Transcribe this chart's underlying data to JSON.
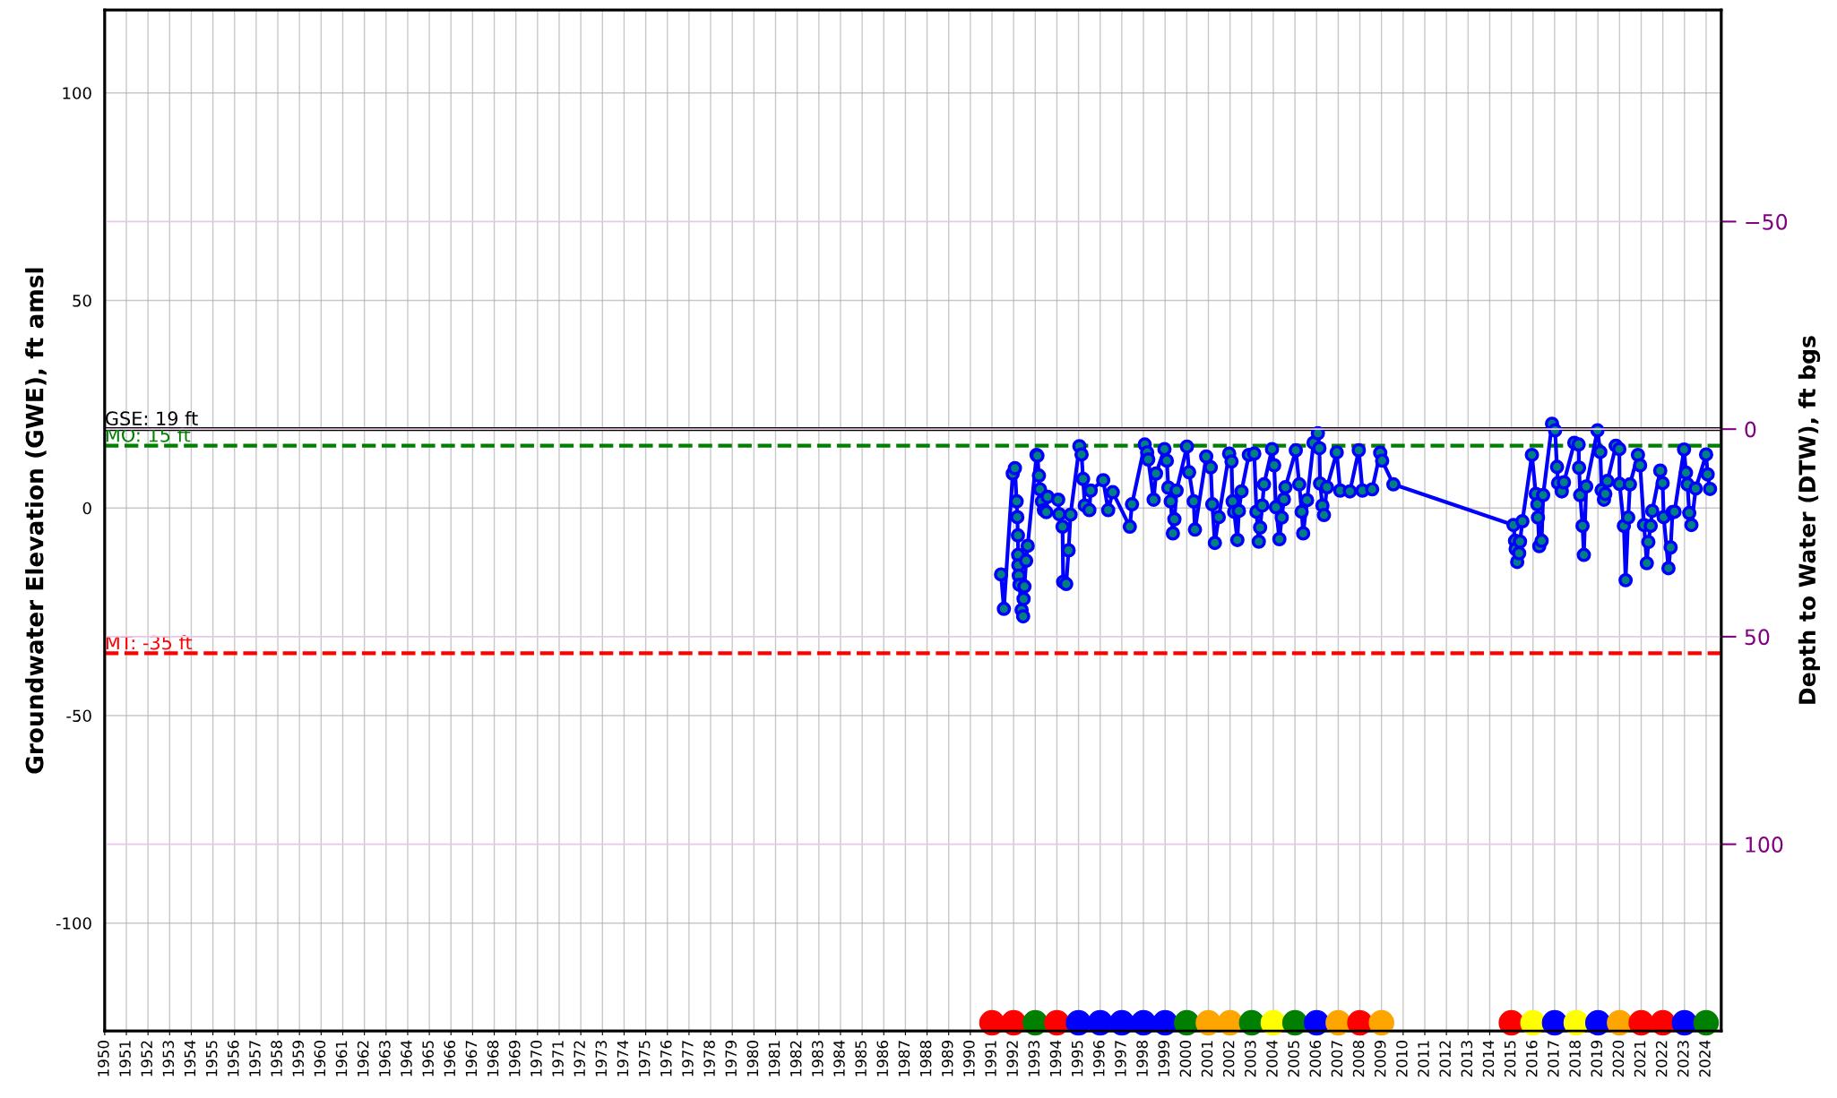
{
  "chart_data": {
    "type": "line",
    "ylabel": "Groundwater Elevation (GWE), ft amsl",
    "y2label": "Depth to Water (DTW), ft bgs",
    "xlim": [
      1950,
      2024.7
    ],
    "ylim": [
      -126,
      120
    ],
    "y2lim": [
      145,
      -101
    ],
    "xticks": [
      1950,
      1951,
      1952,
      1953,
      1954,
      1955,
      1956,
      1957,
      1958,
      1959,
      1960,
      1961,
      1962,
      1963,
      1964,
      1965,
      1966,
      1967,
      1968,
      1969,
      1970,
      1971,
      1972,
      1973,
      1974,
      1975,
      1976,
      1977,
      1978,
      1979,
      1980,
      1981,
      1982,
      1983,
      1984,
      1985,
      1986,
      1987,
      1988,
      1989,
      1990,
      1991,
      1992,
      1993,
      1994,
      1995,
      1996,
      1997,
      1998,
      1999,
      2000,
      2001,
      2002,
      2003,
      2004,
      2005,
      2006,
      2007,
      2008,
      2009,
      2010,
      2011,
      2012,
      2013,
      2014,
      2015,
      2016,
      2017,
      2018,
      2019,
      2020,
      2021,
      2022,
      2023,
      2024
    ],
    "yticks": [
      -100,
      -50,
      0,
      50,
      100
    ],
    "y2ticks": [
      {
        "value": -50,
        "label": "−50"
      },
      0,
      50,
      100
    ],
    "grid": true,
    "legend": false,
    "ref_lines": [
      {
        "axis": "y",
        "value": 19,
        "label": "GSE: 19 ft",
        "color": "#000000",
        "line_style": "solid"
      },
      {
        "axis": "y",
        "value": 15,
        "label": "MO: 15 ft",
        "color": "#008000",
        "line_style": "dashed"
      },
      {
        "axis": "y",
        "value": -35,
        "label": "MT: -35 ft",
        "color": "#ff0000",
        "line_style": "dashed"
      }
    ],
    "series": [
      {
        "color": "#0000ff",
        "marker": "circle",
        "line_style": "solid",
        "x": [
          1991.42,
          1991.55,
          1991.96,
          1992.06,
          1992.14,
          1992.17,
          1992.2,
          1992.21,
          1992.22,
          1992.24,
          1992.27,
          1992.37,
          1992.44,
          1992.46,
          1992.5,
          1992.58,
          1992.65,
          1993.06,
          1993.1,
          1993.17,
          1993.22,
          1993.31,
          1993.4,
          1993.51,
          1993.57,
          1994.06,
          1994.11,
          1994.26,
          1994.29,
          1994.43,
          1994.54,
          1994.63,
          1995.04,
          1995.14,
          1995.21,
          1995.29,
          1995.5,
          1995.56,
          1996.14,
          1996.37,
          1996.58,
          1997.37,
          1997.47,
          1998.06,
          1998.17,
          1998.22,
          1998.47,
          1998.58,
          1998.97,
          1999.08,
          1999.15,
          1999.26,
          1999.36,
          1999.43,
          1999.53,
          2000.01,
          2000.11,
          2000.32,
          2000.38,
          2000.9,
          2001.11,
          2001.18,
          2001.3,
          2001.48,
          2001.96,
          2002.07,
          2002.12,
          2002.19,
          2002.34,
          2002.41,
          2002.53,
          2002.87,
          2003.12,
          2003.22,
          2003.33,
          2003.39,
          2003.49,
          2003.57,
          2003.94,
          2004.04,
          2004.12,
          2004.28,
          2004.39,
          2004.49,
          2004.56,
          2005.04,
          2005.2,
          2005.31,
          2005.38,
          2005.56,
          2005.86,
          2006.06,
          2006.13,
          2006.16,
          2006.27,
          2006.34,
          2006.48,
          2006.93,
          2007.09,
          2007.54,
          2007.95,
          2008.12,
          2008.57,
          2008.94,
          2009.03,
          2009.55,
          2015.1,
          2015.17,
          2015.2,
          2015.27,
          2015.36,
          2015.4,
          2015.51,
          2015.95,
          2016.13,
          2016.2,
          2016.23,
          2016.29,
          2016.4,
          2016.47,
          2016.88,
          2017.02,
          2017.11,
          2017.16,
          2017.33,
          2017.43,
          2017.91,
          2018.11,
          2018.13,
          2018.18,
          2018.29,
          2018.35,
          2018.46,
          2018.98,
          2019.11,
          2019.17,
          2019.28,
          2019.34,
          2019.44,
          2019.83,
          2019.99,
          2020.0,
          2020.2,
          2020.28,
          2020.4,
          2020.48,
          2020.85,
          2020.95,
          2021.13,
          2021.26,
          2021.33,
          2021.44,
          2021.51,
          2021.88,
          2021.99,
          2022.04,
          2022.26,
          2022.36,
          2022.45,
          2022.54,
          2022.98,
          2023.07,
          2023.14,
          2023.22,
          2023.32,
          2023.52,
          2024.0,
          2024.07,
          2024.18
        ],
        "values": [
          -16.0,
          -24.3,
          8.3,
          9.6,
          1.6,
          -2.2,
          -6.6,
          -11.3,
          -13.8,
          -16.3,
          -18.5,
          -24.6,
          -26.1,
          -21.9,
          -18.9,
          -12.7,
          -9.1,
          12.8,
          12.6,
          7.8,
          4.5,
          1.6,
          -0.5,
          -1.0,
          2.7,
          2.0,
          -1.5,
          -4.5,
          -17.8,
          -18.3,
          -10.2,
          -1.6,
          14.9,
          12.9,
          7.0,
          0.6,
          -0.5,
          4.2,
          6.7,
          -0.5,
          3.8,
          -4.5,
          0.9,
          15.3,
          13.4,
          11.7,
          2.0,
          8.3,
          14.2,
          11.4,
          4.9,
          1.6,
          -6.1,
          -2.7,
          4.2,
          14.8,
          8.6,
          1.6,
          -5.2,
          12.4,
          9.8,
          0.9,
          -8.4,
          -2.2,
          13.1,
          11.2,
          1.6,
          -0.9,
          -7.7,
          -0.7,
          4.0,
          12.8,
          13.1,
          -0.9,
          -8.1,
          -4.7,
          0.6,
          5.7,
          14.2,
          10.3,
          0.2,
          -7.5,
          -2.3,
          2.1,
          5.0,
          13.9,
          5.7,
          -0.9,
          -6.1,
          1.9,
          15.7,
          18.0,
          14.4,
          5.9,
          0.6,
          -1.7,
          5.0,
          13.4,
          4.2,
          4.0,
          13.9,
          4.2,
          4.5,
          13.3,
          11.4,
          5.7,
          -4.1,
          -7.9,
          -9.9,
          -13.0,
          -10.9,
          -8.1,
          -3.2,
          12.8,
          3.4,
          0.9,
          -2.3,
          -9.2,
          -7.9,
          3.1,
          20.3,
          18.7,
          9.9,
          6.0,
          4.0,
          6.2,
          15.7,
          15.3,
          9.7,
          3.1,
          -4.3,
          -11.3,
          5.2,
          18.7,
          13.5,
          4.3,
          2.0,
          3.4,
          6.5,
          15.0,
          14.2,
          5.8,
          -4.3,
          -17.4,
          -2.3,
          5.7,
          12.8,
          10.3,
          -4.1,
          -13.3,
          -8.2,
          -4.3,
          -0.7,
          9.0,
          6.0,
          -2.2,
          -14.5,
          -9.5,
          -1.0,
          -0.9,
          14.1,
          8.5,
          5.7,
          -1.2,
          -4.1,
          4.7,
          12.9,
          8.1,
          4.6
        ]
      },
      {
        "type": "scatter",
        "marker": "circle",
        "x": [
          1991,
          1992,
          1993,
          1994,
          1995,
          1996,
          1997,
          1998,
          1999,
          2000,
          2001,
          2002,
          2003,
          2004,
          2005,
          2006,
          2007,
          2008,
          2009,
          2015,
          2016,
          2017,
          2018,
          2019,
          2020,
          2021,
          2022,
          2023,
          2024
        ],
        "values": [
          -124,
          -124,
          -124,
          -124,
          -124,
          -124,
          -124,
          -124,
          -124,
          -124,
          -124,
          -124,
          -124,
          -124,
          -124,
          -124,
          -124,
          -124,
          -124,
          -124,
          -124,
          -124,
          -124,
          -124,
          -124,
          -124,
          -124,
          -124,
          -124
        ],
        "colors": [
          "#ff0000",
          "#ff0000",
          "#008000",
          "#ff0000",
          "#0000ff",
          "#0000ff",
          "#0000ff",
          "#0000ff",
          "#0000ff",
          "#008000",
          "#ffa500",
          "#ffa500",
          "#008000",
          "#ffff00",
          "#008000",
          "#0000ff",
          "#ffa500",
          "#ff0000",
          "#ffa500",
          "#ff0000",
          "#ffff00",
          "#0000ff",
          "#ffff00",
          "#0000ff",
          "#ffa500",
          "#ff0000",
          "#ff0000",
          "#0000ff",
          "#008000"
        ]
      }
    ]
  }
}
